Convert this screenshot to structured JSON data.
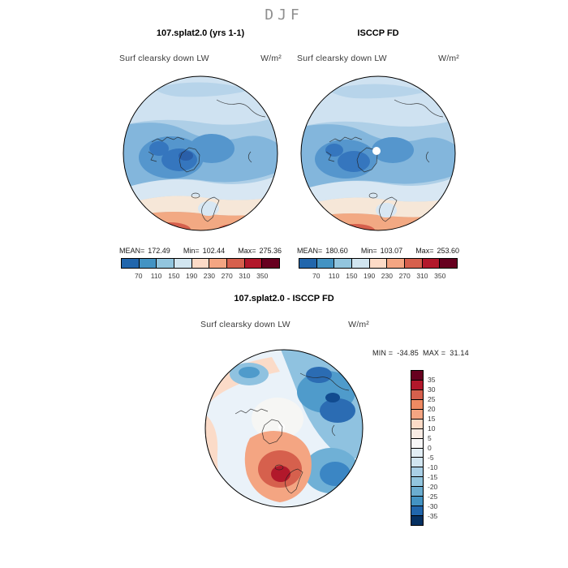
{
  "season_title": "DJF",
  "panels": [
    {
      "title": "107.splat2.0 (yrs 1-1)",
      "variable": "Surf clearsky down LW",
      "units": "W/m²",
      "stats": {
        "mean_label": "MEAN=",
        "mean": "172.49",
        "min_label": "Min=",
        "min": "102.44",
        "max_label": "Max=",
        "max": "275.36"
      },
      "colorbar": {
        "ticks": [
          "70",
          "110",
          "150",
          "190",
          "230",
          "270",
          "310",
          "350"
        ],
        "colors": [
          "#2166ac",
          "#4393c3",
          "#92c5de",
          "#d1e5f0",
          "#fddbc7",
          "#f4a582",
          "#d6604d",
          "#b2182b",
          "#67001f"
        ]
      }
    },
    {
      "title": "ISCCP FD",
      "variable": "Surf clearsky down LW",
      "units": "W/m²",
      "stats": {
        "mean_label": "MEAN=",
        "mean": "180.60",
        "min_label": "Min=",
        "min": "103.07",
        "max_label": "Max=",
        "max": "253.60"
      },
      "colorbar": {
        "ticks": [
          "70",
          "110",
          "150",
          "190",
          "230",
          "270",
          "310",
          "350"
        ],
        "colors": [
          "#2166ac",
          "#4393c3",
          "#92c5de",
          "#d1e5f0",
          "#fddbc7",
          "#f4a582",
          "#d6604d",
          "#b2182b",
          "#67001f"
        ]
      }
    }
  ],
  "diff": {
    "title": "107.splat2.0 - ISCCP FD",
    "variable": "Surf clearsky down LW",
    "units": "W/m²",
    "min_label": "MIN =",
    "min_value": "-34.85",
    "max_label": "MAX =",
    "max_value": "31.14",
    "colorbar": {
      "ticks": [
        "35",
        "30",
        "25",
        "20",
        "15",
        "10",
        "5",
        "0",
        "-5",
        "-10",
        "-15",
        "-20",
        "-25",
        "-30",
        "-35"
      ],
      "colors": [
        "#67001f",
        "#b2182b",
        "#d6604d",
        "#ef8a62",
        "#f4a582",
        "#fddbc7",
        "#f9ece4",
        "#f7f7f7",
        "#e2eef5",
        "#d1e5f0",
        "#a9cfe5",
        "#92c5de",
        "#6badd0",
        "#4393c3",
        "#2166ac",
        "#053061"
      ]
    }
  },
  "chart_data": [
    {
      "type": "heatmap",
      "subtype": "north-polar-stereographic-filled-contour-map",
      "season": "DJF",
      "title": "107.splat2.0 (yrs 1-1)",
      "variable": "Surf clearsky down LW",
      "units": "W/m²",
      "stats": {
        "mean": 172.49,
        "min": 102.44,
        "max": 275.36
      },
      "contour_levels": [
        70,
        110,
        150,
        190,
        230,
        270,
        310,
        350
      ],
      "palette_low_to_high": [
        "#2166ac",
        "#4393c3",
        "#92c5de",
        "#d1e5f0",
        "#fddbc7",
        "#f4a582",
        "#d6604d",
        "#b2182b",
        "#67001f"
      ],
      "legend_position": "bottom"
    },
    {
      "type": "heatmap",
      "subtype": "north-polar-stereographic-filled-contour-map",
      "season": "DJF",
      "title": "ISCCP FD",
      "variable": "Surf clearsky down LW",
      "units": "W/m²",
      "stats": {
        "mean": 180.6,
        "min": 103.07,
        "max": 253.6
      },
      "contour_levels": [
        70,
        110,
        150,
        190,
        230,
        270,
        310,
        350
      ],
      "palette_low_to_high": [
        "#2166ac",
        "#4393c3",
        "#92c5de",
        "#d1e5f0",
        "#fddbc7",
        "#f4a582",
        "#d6604d",
        "#b2182b",
        "#67001f"
      ],
      "legend_position": "bottom"
    },
    {
      "type": "heatmap",
      "subtype": "north-polar-stereographic-filled-contour-map",
      "season": "DJF",
      "title": "107.splat2.0 - ISCCP FD",
      "variable": "Surf clearsky down LW",
      "units": "W/m²",
      "stats": {
        "min": -34.85,
        "max": 31.14
      },
      "contour_levels": [
        -35,
        -30,
        -25,
        -20,
        -15,
        -10,
        -5,
        0,
        5,
        10,
        15,
        20,
        25,
        30,
        35
      ],
      "palette_low_to_high": [
        "#053061",
        "#2166ac",
        "#4393c3",
        "#6badd0",
        "#92c5de",
        "#a9cfe5",
        "#d1e5f0",
        "#e2eef5",
        "#f7f7f7",
        "#f9ece4",
        "#fddbc7",
        "#f4a582",
        "#ef8a62",
        "#d6604d",
        "#b2182b",
        "#67001f"
      ],
      "legend_position": "right"
    }
  ]
}
